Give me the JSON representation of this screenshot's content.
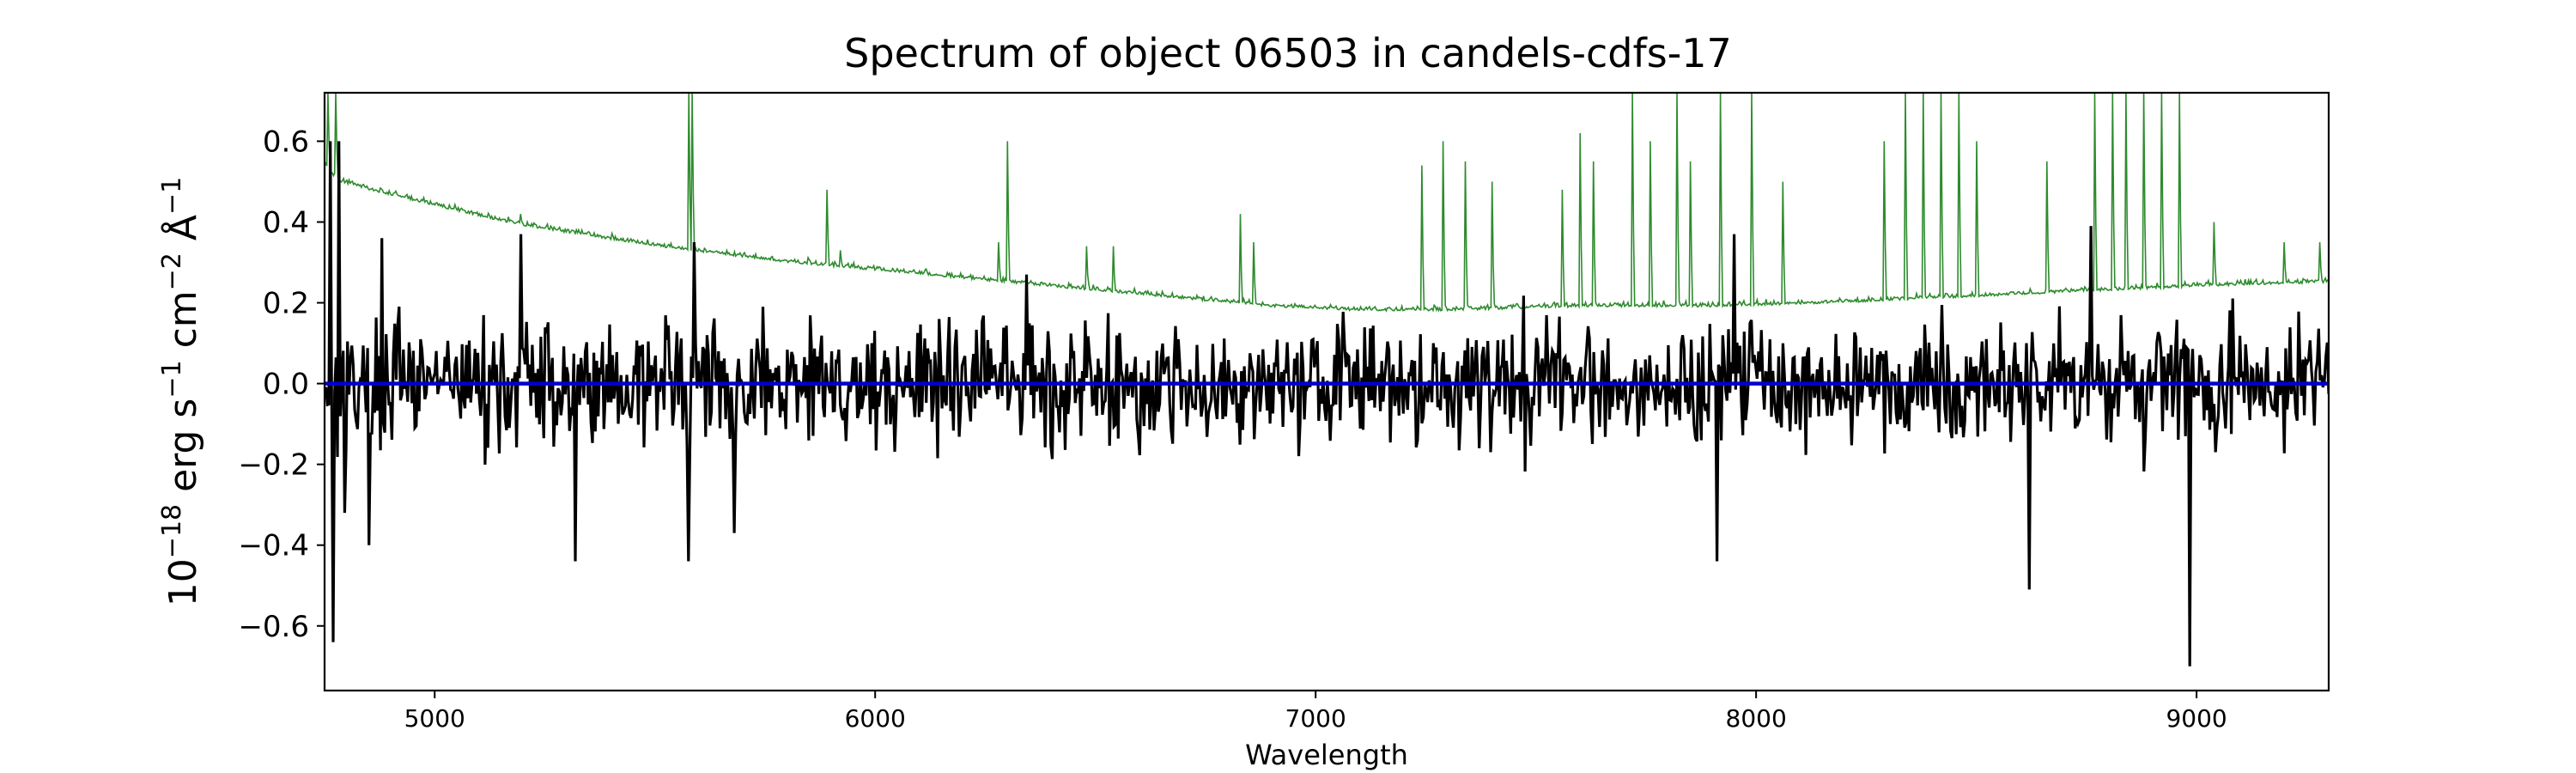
{
  "chart_data": {
    "type": "line",
    "title": "Spectrum of object 06503 in candels-cdfs-17",
    "xlabel": "Wavelength",
    "ylabel": {
      "prefix": "10",
      "sup1": "−18",
      "mid1": " erg s",
      "sup2": "−1",
      "mid2": " cm",
      "sup3": "−2",
      "mid3": " Å",
      "sup4": "−1"
    },
    "xlim": [
      4750,
      9300
    ],
    "ylim": [
      -0.76,
      0.72
    ],
    "xticks": [
      5000,
      6000,
      7000,
      8000,
      9000
    ],
    "yticks": [
      -0.6,
      -0.4,
      -0.2,
      0.0,
      0.2,
      0.4,
      0.6
    ],
    "grid": false,
    "series": [
      {
        "role": "flux",
        "color": "#000000",
        "x_range": [
          4750,
          9300
        ],
        "n_points": 1400,
        "noise_level": 0.11,
        "features": [
          {
            "x": 4762,
            "y": 0.6
          },
          {
            "x": 4770,
            "y": -0.64
          },
          {
            "x": 4782,
            "y": 0.6
          },
          {
            "x": 4795,
            "y": -0.32
          },
          {
            "x": 4850,
            "y": -0.4
          },
          {
            "x": 4880,
            "y": 0.36
          },
          {
            "x": 5195,
            "y": 0.37
          },
          {
            "x": 5320,
            "y": -0.44
          },
          {
            "x": 5575,
            "y": -0.44
          },
          {
            "x": 5590,
            "y": 0.35
          },
          {
            "x": 5680,
            "y": -0.37
          },
          {
            "x": 6345,
            "y": 0.27
          },
          {
            "x": 7950,
            "y": 0.37
          },
          {
            "x": 7910,
            "y": -0.44
          },
          {
            "x": 8620,
            "y": -0.51
          },
          {
            "x": 8760,
            "y": 0.39
          },
          {
            "x": 8985,
            "y": -0.7
          }
        ]
      },
      {
        "role": "zero",
        "color": "#0000cc",
        "y": 0.0
      },
      {
        "role": "error",
        "color": "#2e8b2e",
        "continuum": [
          [
            4750,
            0.54
          ],
          [
            4780,
            0.5
          ],
          [
            4850,
            0.48
          ],
          [
            5000,
            0.44
          ],
          [
            5200,
            0.39
          ],
          [
            5500,
            0.34
          ],
          [
            5800,
            0.3
          ],
          [
            6100,
            0.27
          ],
          [
            6400,
            0.24
          ],
          [
            6700,
            0.21
          ],
          [
            6900,
            0.19
          ],
          [
            7100,
            0.18
          ],
          [
            7300,
            0.18
          ],
          [
            7600,
            0.19
          ],
          [
            7900,
            0.19
          ],
          [
            8200,
            0.2
          ],
          [
            8400,
            0.21
          ],
          [
            8600,
            0.22
          ],
          [
            8800,
            0.23
          ],
          [
            9000,
            0.24
          ],
          [
            9300,
            0.25
          ]
        ],
        "lines": [
          {
            "x": 4758,
            "y": 0.72
          },
          {
            "x": 4775,
            "y": 0.72
          },
          {
            "x": 5195,
            "y": 0.42
          },
          {
            "x": 5577,
            "y": 0.72
          },
          {
            "x": 5585,
            "y": 0.72
          },
          {
            "x": 5890,
            "y": 0.48
          },
          {
            "x": 5920,
            "y": 0.33
          },
          {
            "x": 6300,
            "y": 0.6
          },
          {
            "x": 6280,
            "y": 0.35
          },
          {
            "x": 6480,
            "y": 0.34
          },
          {
            "x": 6540,
            "y": 0.34
          },
          {
            "x": 6830,
            "y": 0.42
          },
          {
            "x": 6860,
            "y": 0.35
          },
          {
            "x": 7240,
            "y": 0.54
          },
          {
            "x": 7290,
            "y": 0.6
          },
          {
            "x": 7340,
            "y": 0.55
          },
          {
            "x": 7400,
            "y": 0.5
          },
          {
            "x": 7560,
            "y": 0.48
          },
          {
            "x": 7600,
            "y": 0.62
          },
          {
            "x": 7630,
            "y": 0.55
          },
          {
            "x": 7720,
            "y": 0.72
          },
          {
            "x": 7760,
            "y": 0.6
          },
          {
            "x": 7820,
            "y": 0.72
          },
          {
            "x": 7850,
            "y": 0.55
          },
          {
            "x": 7920,
            "y": 0.72
          },
          {
            "x": 7990,
            "y": 0.72
          },
          {
            "x": 8060,
            "y": 0.5
          },
          {
            "x": 8290,
            "y": 0.6
          },
          {
            "x": 8340,
            "y": 0.72
          },
          {
            "x": 8380,
            "y": 0.72
          },
          {
            "x": 8420,
            "y": 0.72
          },
          {
            "x": 8460,
            "y": 0.72
          },
          {
            "x": 8500,
            "y": 0.6
          },
          {
            "x": 8660,
            "y": 0.55
          },
          {
            "x": 8770,
            "y": 0.72
          },
          {
            "x": 8810,
            "y": 0.72
          },
          {
            "x": 8840,
            "y": 0.72
          },
          {
            "x": 8880,
            "y": 0.72
          },
          {
            "x": 8920,
            "y": 0.72
          },
          {
            "x": 8960,
            "y": 0.72
          },
          {
            "x": 9040,
            "y": 0.4
          },
          {
            "x": 9200,
            "y": 0.35
          },
          {
            "x": 9280,
            "y": 0.35
          }
        ]
      }
    ]
  }
}
